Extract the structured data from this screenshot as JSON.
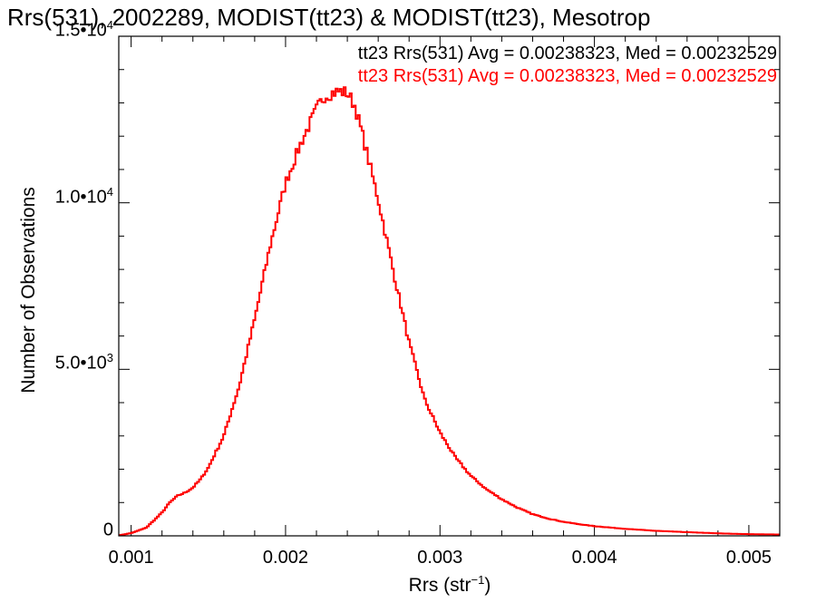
{
  "chart_data": {
    "type": "line",
    "title": "Rrs(531), 2002289, MODIST(tt23) & MODIST(tt23), Mesotrop",
    "xlabel_base": "Rrs (str",
    "xlabel_sup": "−1",
    "xlabel_close": ")",
    "ylabel": "Number of Observations",
    "xlim": [
      0.00092,
      0.0052
    ],
    "ylim": [
      0,
      15000
    ],
    "x_ticks": [
      {
        "value": 0.001,
        "label": "0.001"
      },
      {
        "value": 0.002,
        "label": "0.002"
      },
      {
        "value": 0.003,
        "label": "0.003"
      },
      {
        "value": 0.004,
        "label": "0.004"
      },
      {
        "value": 0.005,
        "label": "0.005"
      }
    ],
    "y_ticks": [
      {
        "value": 0,
        "base": "0",
        "exp": ""
      },
      {
        "value": 5000,
        "base": "5.0•10",
        "exp": "3"
      },
      {
        "value": 10000,
        "base": "1.0•10",
        "exp": "4"
      },
      {
        "value": 15000,
        "base": "1.5•10",
        "exp": "4"
      }
    ],
    "legend": [
      {
        "text": "tt23 Rrs(531) Avg = 0.00238323, Med = 0.00232529",
        "color": "#000000"
      },
      {
        "text": "tt23 Rrs(531) Avg = 0.00238323, Med = 0.00232529",
        "color": "#ff0000"
      }
    ],
    "series": [
      {
        "color": "#ff0000",
        "x": [
          0.0009,
          0.001,
          0.0011,
          0.0012,
          0.00125,
          0.0013,
          0.00135,
          0.0014,
          0.00145,
          0.0015,
          0.0016,
          0.0017,
          0.0018,
          0.0019,
          0.002,
          0.0021,
          0.0022,
          0.00225,
          0.0023,
          0.00235,
          0.0024,
          0.00245,
          0.0025,
          0.0026,
          0.0027,
          0.0028,
          0.0029,
          0.003,
          0.0031,
          0.0032,
          0.0033,
          0.0034,
          0.0035,
          0.0036,
          0.0037,
          0.0038,
          0.0039,
          0.004,
          0.0042,
          0.0044,
          0.0046,
          0.0048,
          0.005,
          0.0052
        ],
        "values": [
          0,
          80,
          250,
          700,
          1000,
          1200,
          1300,
          1450,
          1700,
          2050,
          3000,
          4500,
          6500,
          8700,
          10600,
          11800,
          12800,
          13200,
          13300,
          13350,
          13300,
          12900,
          12000,
          10100,
          7900,
          5800,
          4100,
          3100,
          2350,
          1800,
          1400,
          1100,
          850,
          650,
          520,
          420,
          350,
          290,
          210,
          150,
          110,
          75,
          50,
          40
        ]
      }
    ]
  }
}
